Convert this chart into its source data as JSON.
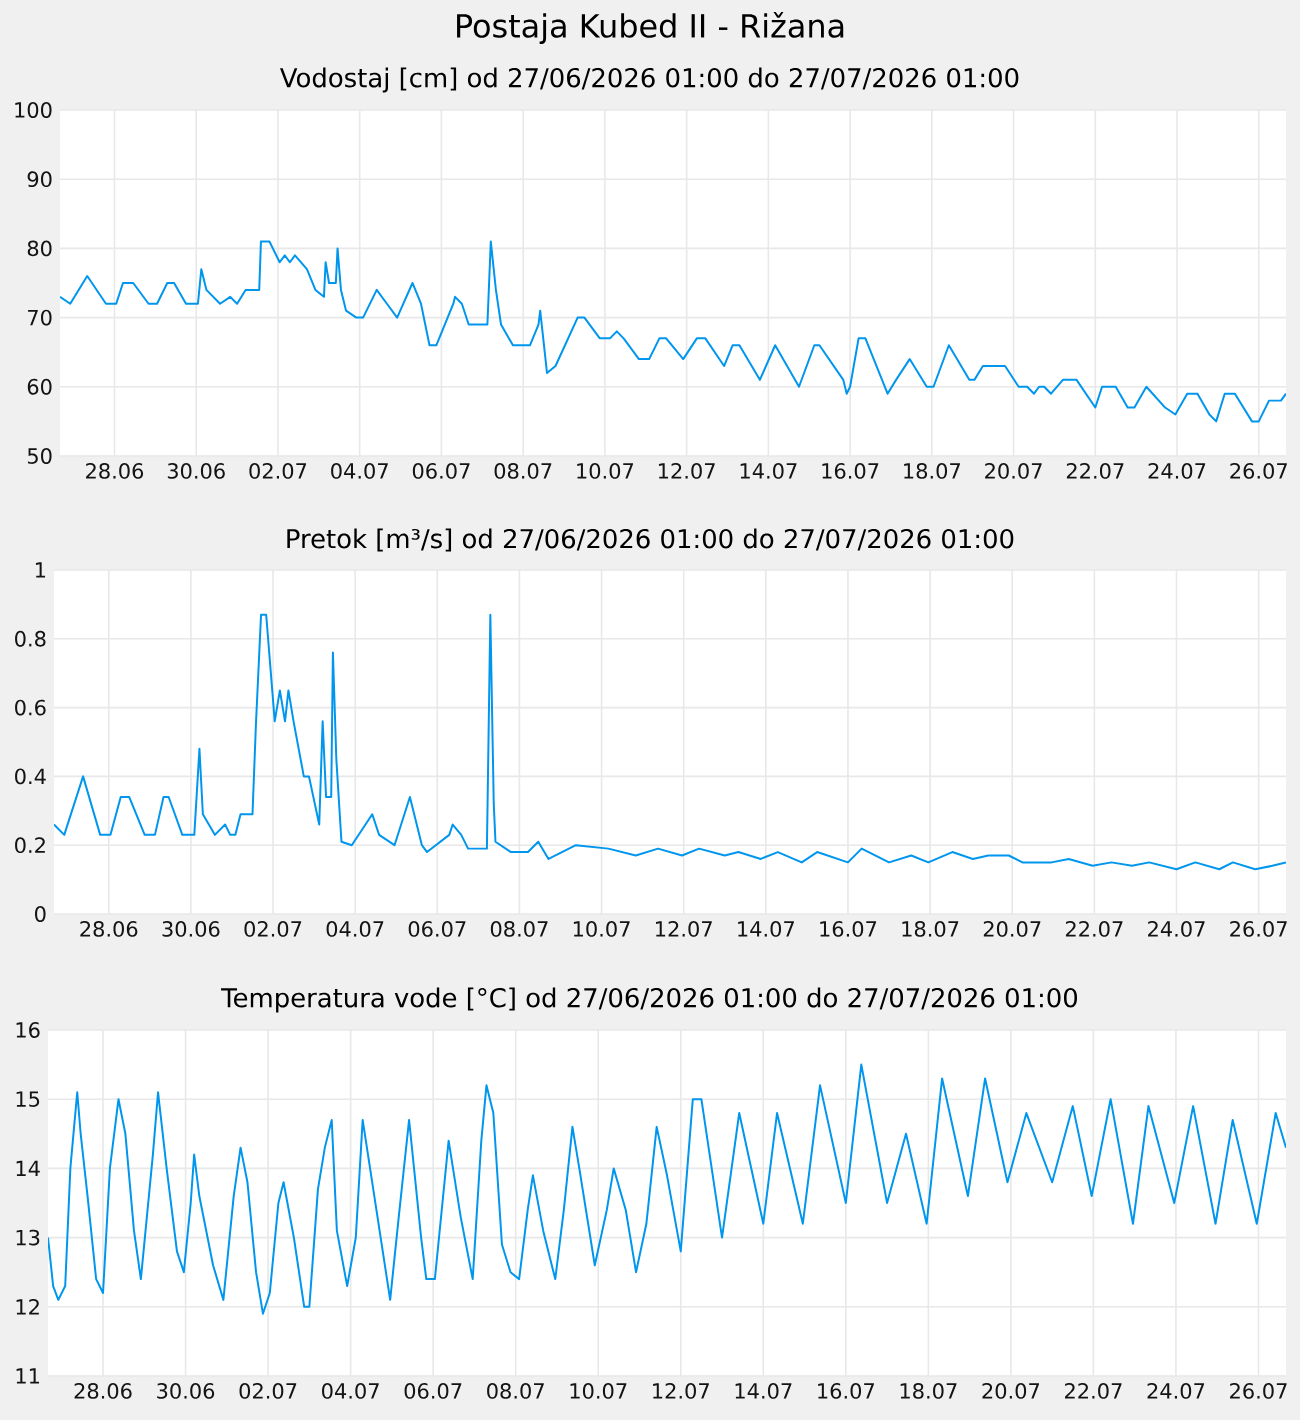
{
  "chart_data": [
    {
      "type": "line",
      "title": "Postaja Kubed II - Rižana",
      "subtitle": "Vodostaj [cm] od 27/06/2026 01:00 do 27/07/2026 01:00",
      "color": "#0096ee",
      "grid": true,
      "marker": "none",
      "line_style": "solid",
      "xlim": [
        "2026-06-27T01:00",
        "2026-07-27T01:00"
      ],
      "ylim": [
        50,
        100
      ],
      "yticks": [
        50,
        60,
        70,
        80,
        90,
        100
      ],
      "xticks": [
        {
          "value": "2026-06-28T09:00",
          "label": "28.06"
        },
        {
          "value": "2026-06-30T09:00",
          "label": "30.06"
        },
        {
          "value": "2026-07-02T09:00",
          "label": "02.07"
        },
        {
          "value": "2026-07-04T09:00",
          "label": "04.07"
        },
        {
          "value": "2026-07-06T09:00",
          "label": "06.07"
        },
        {
          "value": "2026-07-08T09:00",
          "label": "08.07"
        },
        {
          "value": "2026-07-10T09:00",
          "label": "10.07"
        },
        {
          "value": "2026-07-12T09:00",
          "label": "12.07"
        },
        {
          "value": "2026-07-14T09:00",
          "label": "14.07"
        },
        {
          "value": "2026-07-16T09:00",
          "label": "16.07"
        },
        {
          "value": "2026-07-18T09:00",
          "label": "18.07"
        },
        {
          "value": "2026-07-20T09:00",
          "label": "20.07"
        },
        {
          "value": "2026-07-22T09:00",
          "label": "22.07"
        },
        {
          "value": "2026-07-24T09:00",
          "label": "24.07"
        },
        {
          "value": "2026-07-26T09:00",
          "label": "26.07"
        }
      ],
      "x": [
        "2026-06-27T01:00",
        "2026-06-27T07:00",
        "2026-06-27T17:00",
        "2026-06-28T04:00",
        "2026-06-28T10:00",
        "2026-06-28T14:00",
        "2026-06-28T20:00",
        "2026-06-29T05:00",
        "2026-06-29T10:00",
        "2026-06-29T16:00",
        "2026-06-29T20:00",
        "2026-06-30T03:00",
        "2026-06-30T10:00",
        "2026-06-30T12:00",
        "2026-06-30T15:00",
        "2026-06-30T23:00",
        "2026-07-01T05:00",
        "2026-07-01T09:00",
        "2026-07-01T14:00",
        "2026-07-01T22:00",
        "2026-07-01T23:00",
        "2026-07-02T04:00",
        "2026-07-02T10:00",
        "2026-07-02T13:00",
        "2026-07-02T16:00",
        "2026-07-02T19:00",
        "2026-07-03T02:00",
        "2026-07-03T07:00",
        "2026-07-03T12:00",
        "2026-07-03T13:00",
        "2026-07-03T15:00",
        "2026-07-03T19:00",
        "2026-07-03T20:00",
        "2026-07-03T22:00",
        "2026-07-04T01:00",
        "2026-07-04T07:00",
        "2026-07-04T11:00",
        "2026-07-04T19:00",
        "2026-07-05T01:00",
        "2026-07-05T07:00",
        "2026-07-05T16:00",
        "2026-07-05T21:00",
        "2026-07-06T02:00",
        "2026-07-06T06:00",
        "2026-07-06T16:00",
        "2026-07-06T17:00",
        "2026-07-06T21:00",
        "2026-07-07T01:00",
        "2026-07-07T12:00",
        "2026-07-07T14:00",
        "2026-07-07T17:00",
        "2026-07-07T20:00",
        "2026-07-08T03:00",
        "2026-07-08T13:00",
        "2026-07-08T18:00",
        "2026-07-08T19:00",
        "2026-07-08T23:00",
        "2026-07-09T04:00",
        "2026-07-09T17:00",
        "2026-07-09T21:00",
        "2026-07-10T06:00",
        "2026-07-10T12:00",
        "2026-07-10T16:00",
        "2026-07-10T20:00",
        "2026-07-11T05:00",
        "2026-07-11T11:00",
        "2026-07-11T17:00",
        "2026-07-11T21:00",
        "2026-07-12T07:00",
        "2026-07-12T15:00",
        "2026-07-12T20:00",
        "2026-07-13T07:00",
        "2026-07-13T12:00",
        "2026-07-13T16:00",
        "2026-07-14T04:00",
        "2026-07-14T13:00",
        "2026-07-15T03:00",
        "2026-07-15T12:00",
        "2026-07-15T15:00",
        "2026-07-16T05:00",
        "2026-07-16T07:00",
        "2026-07-16T09:00",
        "2026-07-16T14:00",
        "2026-07-16T18:00",
        "2026-07-17T07:00",
        "2026-07-17T12:00",
        "2026-07-17T20:00",
        "2026-07-18T06:00",
        "2026-07-18T10:00",
        "2026-07-18T19:00",
        "2026-07-19T07:00",
        "2026-07-19T10:00",
        "2026-07-19T15:00",
        "2026-07-20T04:00",
        "2026-07-20T12:00",
        "2026-07-20T17:00",
        "2026-07-20T21:00",
        "2026-07-21T00:00",
        "2026-07-21T03:00",
        "2026-07-21T07:00",
        "2026-07-21T14:00",
        "2026-07-21T22:00",
        "2026-07-22T09:00",
        "2026-07-22T13:00",
        "2026-07-22T21:00",
        "2026-07-23T04:00",
        "2026-07-23T08:00",
        "2026-07-23T15:00",
        "2026-07-24T02:00",
        "2026-07-24T08:00",
        "2026-07-24T15:00",
        "2026-07-24T21:00",
        "2026-07-25T04:00",
        "2026-07-25T08:00",
        "2026-07-25T13:00",
        "2026-07-25T19:00",
        "2026-07-26T05:00",
        "2026-07-26T09:00",
        "2026-07-26T15:00",
        "2026-07-26T22:00",
        "2026-07-27T01:00"
      ],
      "values": [
        73,
        72,
        76,
        72,
        72,
        75,
        75,
        72,
        72,
        75,
        75,
        72,
        72,
        77,
        74,
        72,
        73,
        72,
        74,
        74,
        81,
        81,
        78,
        79,
        78,
        79,
        77,
        74,
        73,
        78,
        75,
        75,
        80,
        74,
        71,
        70,
        70,
        74,
        72,
        70,
        75,
        72,
        66,
        66,
        72,
        73,
        72,
        69,
        69,
        81,
        74,
        69,
        66,
        66,
        69,
        71,
        62,
        63,
        70,
        70,
        67,
        67,
        68,
        67,
        64,
        64,
        67,
        67,
        64,
        67,
        67,
        63,
        66,
        66,
        61,
        66,
        60,
        66,
        66,
        61,
        59,
        60,
        67,
        67,
        59,
        61,
        64,
        60,
        60,
        66,
        61,
        61,
        63,
        63,
        60,
        60,
        59,
        60,
        60,
        59,
        61,
        61,
        57,
        60,
        60,
        57,
        57,
        60,
        57,
        56,
        59,
        59,
        56,
        55,
        59,
        59,
        55,
        55,
        58,
        58,
        59
      ]
    },
    {
      "type": "line",
      "title": "Pretok [m³/s] od 27/06/2026 01:00 do 27/07/2026 01:00",
      "color": "#0096ee",
      "grid": true,
      "marker": "none",
      "line_style": "solid",
      "xlim": [
        "2026-06-27T01:00",
        "2026-07-27T01:00"
      ],
      "ylim": [
        0,
        1
      ],
      "yticks": [
        0,
        0.2,
        0.4,
        0.6,
        0.8,
        1
      ],
      "xticks": [
        {
          "value": "2026-06-28T09:00",
          "label": "28.06"
        },
        {
          "value": "2026-06-30T09:00",
          "label": "30.06"
        },
        {
          "value": "2026-07-02T09:00",
          "label": "02.07"
        },
        {
          "value": "2026-07-04T09:00",
          "label": "04.07"
        },
        {
          "value": "2026-07-06T09:00",
          "label": "06.07"
        },
        {
          "value": "2026-07-08T09:00",
          "label": "08.07"
        },
        {
          "value": "2026-07-10T09:00",
          "label": "10.07"
        },
        {
          "value": "2026-07-12T09:00",
          "label": "12.07"
        },
        {
          "value": "2026-07-14T09:00",
          "label": "14.07"
        },
        {
          "value": "2026-07-16T09:00",
          "label": "16.07"
        },
        {
          "value": "2026-07-18T09:00",
          "label": "18.07"
        },
        {
          "value": "2026-07-20T09:00",
          "label": "20.07"
        },
        {
          "value": "2026-07-22T09:00",
          "label": "22.07"
        },
        {
          "value": "2026-07-24T09:00",
          "label": "24.07"
        },
        {
          "value": "2026-07-26T09:00",
          "label": "26.07"
        }
      ],
      "x": [
        "2026-06-27T01:00",
        "2026-06-27T07:00",
        "2026-06-27T18:00",
        "2026-06-28T04:00",
        "2026-06-28T10:00",
        "2026-06-28T16:00",
        "2026-06-28T21:00",
        "2026-06-29T06:00",
        "2026-06-29T12:00",
        "2026-06-29T17:00",
        "2026-06-29T20:00",
        "2026-06-30T04:00",
        "2026-06-30T11:00",
        "2026-06-30T14:00",
        "2026-06-30T16:00",
        "2026-06-30T23:00",
        "2026-07-01T05:00",
        "2026-07-01T08:00",
        "2026-07-01T11:00",
        "2026-07-01T14:00",
        "2026-07-01T21:00",
        "2026-07-01T23:00",
        "2026-07-02T02:00",
        "2026-07-02T05:00",
        "2026-07-02T10:00",
        "2026-07-02T13:00",
        "2026-07-02T16:00",
        "2026-07-02T18:00",
        "2026-07-02T21:00",
        "2026-07-03T03:00",
        "2026-07-03T06:00",
        "2026-07-03T12:00",
        "2026-07-03T14:00",
        "2026-07-03T16:00",
        "2026-07-03T19:00",
        "2026-07-03T20:00",
        "2026-07-03T22:00",
        "2026-07-04T01:00",
        "2026-07-04T07:00",
        "2026-07-04T19:00",
        "2026-07-04T23:00",
        "2026-07-05T08:00",
        "2026-07-05T17:00",
        "2026-07-06T00:00",
        "2026-07-06T03:00",
        "2026-07-06T16:00",
        "2026-07-06T18:00",
        "2026-07-06T23:00",
        "2026-07-07T03:00",
        "2026-07-07T14:00",
        "2026-07-07T16:00",
        "2026-07-07T18:00",
        "2026-07-07T19:00",
        "2026-07-08T04:00",
        "2026-07-08T14:00",
        "2026-07-08T20:00",
        "2026-07-09T02:00",
        "2026-07-09T18:00",
        "2026-07-10T13:00",
        "2026-07-11T05:00",
        "2026-07-11T18:00",
        "2026-07-12T08:00",
        "2026-07-12T18:00",
        "2026-07-13T09:00",
        "2026-07-13T17:00",
        "2026-07-14T06:00",
        "2026-07-14T16:00",
        "2026-07-15T06:00",
        "2026-07-15T15:00",
        "2026-07-16T09:00",
        "2026-07-16T17:00",
        "2026-07-17T09:00",
        "2026-07-17T22:00",
        "2026-07-18T08:00",
        "2026-07-18T22:00",
        "2026-07-19T10:00",
        "2026-07-19T19:00",
        "2026-07-20T07:00",
        "2026-07-20T15:00",
        "2026-07-21T08:00",
        "2026-07-21T18:00",
        "2026-07-22T08:00",
        "2026-07-22T19:00",
        "2026-07-23T07:00",
        "2026-07-23T17:00",
        "2026-07-24T09:00",
        "2026-07-24T20:00",
        "2026-07-25T10:00",
        "2026-07-25T18:00",
        "2026-07-26T07:00",
        "2026-07-26T17:00",
        "2026-07-27T01:00"
      ],
      "values": [
        0.26,
        0.23,
        0.4,
        0.23,
        0.23,
        0.34,
        0.34,
        0.23,
        0.23,
        0.34,
        0.34,
        0.23,
        0.23,
        0.48,
        0.29,
        0.23,
        0.26,
        0.23,
        0.23,
        0.29,
        0.29,
        0.55,
        0.87,
        0.87,
        0.56,
        0.65,
        0.56,
        0.65,
        0.56,
        0.4,
        0.4,
        0.26,
        0.56,
        0.34,
        0.34,
        0.76,
        0.45,
        0.21,
        0.2,
        0.29,
        0.23,
        0.2,
        0.34,
        0.2,
        0.18,
        0.23,
        0.26,
        0.23,
        0.19,
        0.19,
        0.87,
        0.32,
        0.21,
        0.18,
        0.18,
        0.21,
        0.16,
        0.2,
        0.19,
        0.17,
        0.19,
        0.17,
        0.19,
        0.17,
        0.18,
        0.16,
        0.18,
        0.15,
        0.18,
        0.15,
        0.19,
        0.15,
        0.17,
        0.15,
        0.18,
        0.16,
        0.17,
        0.17,
        0.15,
        0.15,
        0.16,
        0.14,
        0.15,
        0.14,
        0.15,
        0.13,
        0.15,
        0.13,
        0.15,
        0.13,
        0.14,
        0.15
      ]
    },
    {
      "type": "line",
      "title": "Temperatura vode [°C] od 27/06/2026 01:00 do 27/07/2026 01:00",
      "color": "#0096ee",
      "grid": true,
      "marker": "none",
      "line_style": "solid",
      "xlim": [
        "2026-06-27T01:00",
        "2026-07-27T01:00"
      ],
      "ylim": [
        11,
        16
      ],
      "yticks": [
        11,
        12,
        13,
        14,
        15,
        16
      ],
      "xticks": [
        {
          "value": "2026-06-28T09:00",
          "label": "28.06"
        },
        {
          "value": "2026-06-30T09:00",
          "label": "30.06"
        },
        {
          "value": "2026-07-02T09:00",
          "label": "02.07"
        },
        {
          "value": "2026-07-04T09:00",
          "label": "04.07"
        },
        {
          "value": "2026-07-06T09:00",
          "label": "06.07"
        },
        {
          "value": "2026-07-08T09:00",
          "label": "08.07"
        },
        {
          "value": "2026-07-10T09:00",
          "label": "10.07"
        },
        {
          "value": "2026-07-12T09:00",
          "label": "12.07"
        },
        {
          "value": "2026-07-14T09:00",
          "label": "14.07"
        },
        {
          "value": "2026-07-16T09:00",
          "label": "16.07"
        },
        {
          "value": "2026-07-18T09:00",
          "label": "18.07"
        },
        {
          "value": "2026-07-20T09:00",
          "label": "20.07"
        },
        {
          "value": "2026-07-22T09:00",
          "label": "22.07"
        },
        {
          "value": "2026-07-24T09:00",
          "label": "24.07"
        },
        {
          "value": "2026-07-26T09:00",
          "label": "26.07"
        }
      ],
      "x": [
        "2026-06-27T01:00",
        "2026-06-27T04:00",
        "2026-06-27T07:00",
        "2026-06-27T11:00",
        "2026-06-27T14:00",
        "2026-06-27T18:00",
        "2026-06-27T20:00",
        "2026-06-28T00:00",
        "2026-06-28T05:00",
        "2026-06-28T09:00",
        "2026-06-28T13:00",
        "2026-06-28T18:00",
        "2026-06-28T22:00",
        "2026-06-29T03:00",
        "2026-06-29T07:00",
        "2026-06-29T14:00",
        "2026-06-29T17:00",
        "2026-06-29T22:00",
        "2026-06-30T04:00",
        "2026-06-30T08:00",
        "2026-06-30T12:00",
        "2026-06-30T14:00",
        "2026-06-30T17:00",
        "2026-07-01T01:00",
        "2026-07-01T07:00",
        "2026-07-01T13:00",
        "2026-07-01T17:00",
        "2026-07-01T21:00",
        "2026-07-02T02:00",
        "2026-07-02T06:00",
        "2026-07-02T10:00",
        "2026-07-02T15:00",
        "2026-07-02T18:00",
        "2026-07-03T00:00",
        "2026-07-03T06:00",
        "2026-07-03T09:00",
        "2026-07-03T14:00",
        "2026-07-03T18:00",
        "2026-07-03T22:00",
        "2026-07-04T01:00",
        "2026-07-04T07:00",
        "2026-07-04T12:00",
        "2026-07-04T16:00",
        "2026-07-05T00:00",
        "2026-07-05T08:00",
        "2026-07-05T13:00",
        "2026-07-05T19:00",
        "2026-07-06T02:00",
        "2026-07-06T05:00",
        "2026-07-06T10:00",
        "2026-07-06T18:00",
        "2026-07-07T01:00",
        "2026-07-07T08:00",
        "2026-07-07T13:00",
        "2026-07-07T16:00",
        "2026-07-07T20:00",
        "2026-07-08T01:00",
        "2026-07-08T06:00",
        "2026-07-08T11:00",
        "2026-07-08T16:00",
        "2026-07-08T19:00",
        "2026-07-09T01:00",
        "2026-07-09T08:00",
        "2026-07-09T13:00",
        "2026-07-09T18:00",
        "2026-07-09T22:00",
        "2026-07-10T07:00",
        "2026-07-10T14:00",
        "2026-07-10T18:00",
        "2026-07-11T01:00",
        "2026-07-11T07:00",
        "2026-07-11T13:00",
        "2026-07-11T19:00",
        "2026-07-12T01:00",
        "2026-07-12T09:00",
        "2026-07-12T16:00",
        "2026-07-12T21:00",
        "2026-07-13T09:00",
        "2026-07-13T19:00",
        "2026-07-14T09:00",
        "2026-07-14T17:00",
        "2026-07-15T08:00",
        "2026-07-15T18:00",
        "2026-07-16T09:00",
        "2026-07-16T18:00",
        "2026-07-17T09:00",
        "2026-07-17T20:00",
        "2026-07-18T08:00",
        "2026-07-18T17:00",
        "2026-07-19T08:00",
        "2026-07-19T18:00",
        "2026-07-20T07:00",
        "2026-07-20T18:00",
        "2026-07-21T09:00",
        "2026-07-21T21:00",
        "2026-07-22T08:00",
        "2026-07-22T19:00",
        "2026-07-23T08:00",
        "2026-07-23T17:00",
        "2026-07-24T08:00",
        "2026-07-24T19:00",
        "2026-07-25T08:00",
        "2026-07-25T18:00",
        "2026-07-26T08:00",
        "2026-07-26T19:00",
        "2026-07-27T01:00"
      ],
      "values": [
        13.0,
        12.3,
        12.1,
        12.3,
        14.0,
        15.1,
        14.5,
        13.6,
        12.4,
        12.2,
        14.0,
        15.0,
        14.5,
        13.1,
        12.4,
        14.2,
        15.1,
        14.0,
        12.8,
        12.5,
        13.5,
        14.2,
        13.6,
        12.6,
        12.1,
        13.6,
        14.3,
        13.8,
        12.5,
        11.9,
        12.2,
        13.5,
        13.8,
        13.0,
        12.0,
        12.0,
        13.7,
        14.3,
        14.7,
        13.1,
        12.3,
        13.0,
        14.7,
        13.4,
        12.1,
        13.3,
        14.7,
        13.0,
        12.4,
        12.4,
        14.4,
        13.3,
        12.4,
        14.4,
        15.2,
        14.8,
        12.9,
        12.5,
        12.4,
        13.4,
        13.9,
        13.1,
        12.4,
        13.4,
        14.6,
        14.0,
        12.6,
        13.4,
        14.0,
        13.4,
        12.5,
        13.2,
        14.6,
        13.9,
        12.8,
        15.0,
        15.0,
        13.0,
        14.8,
        13.2,
        14.8,
        13.2,
        15.2,
        13.5,
        15.5,
        13.5,
        14.5,
        13.2,
        15.3,
        13.6,
        15.3,
        13.8,
        14.8,
        13.8,
        14.9,
        13.6,
        15.0,
        13.2,
        14.9,
        13.5,
        14.9,
        13.2,
        14.7,
        13.2,
        14.8,
        14.3
      ]
    }
  ]
}
